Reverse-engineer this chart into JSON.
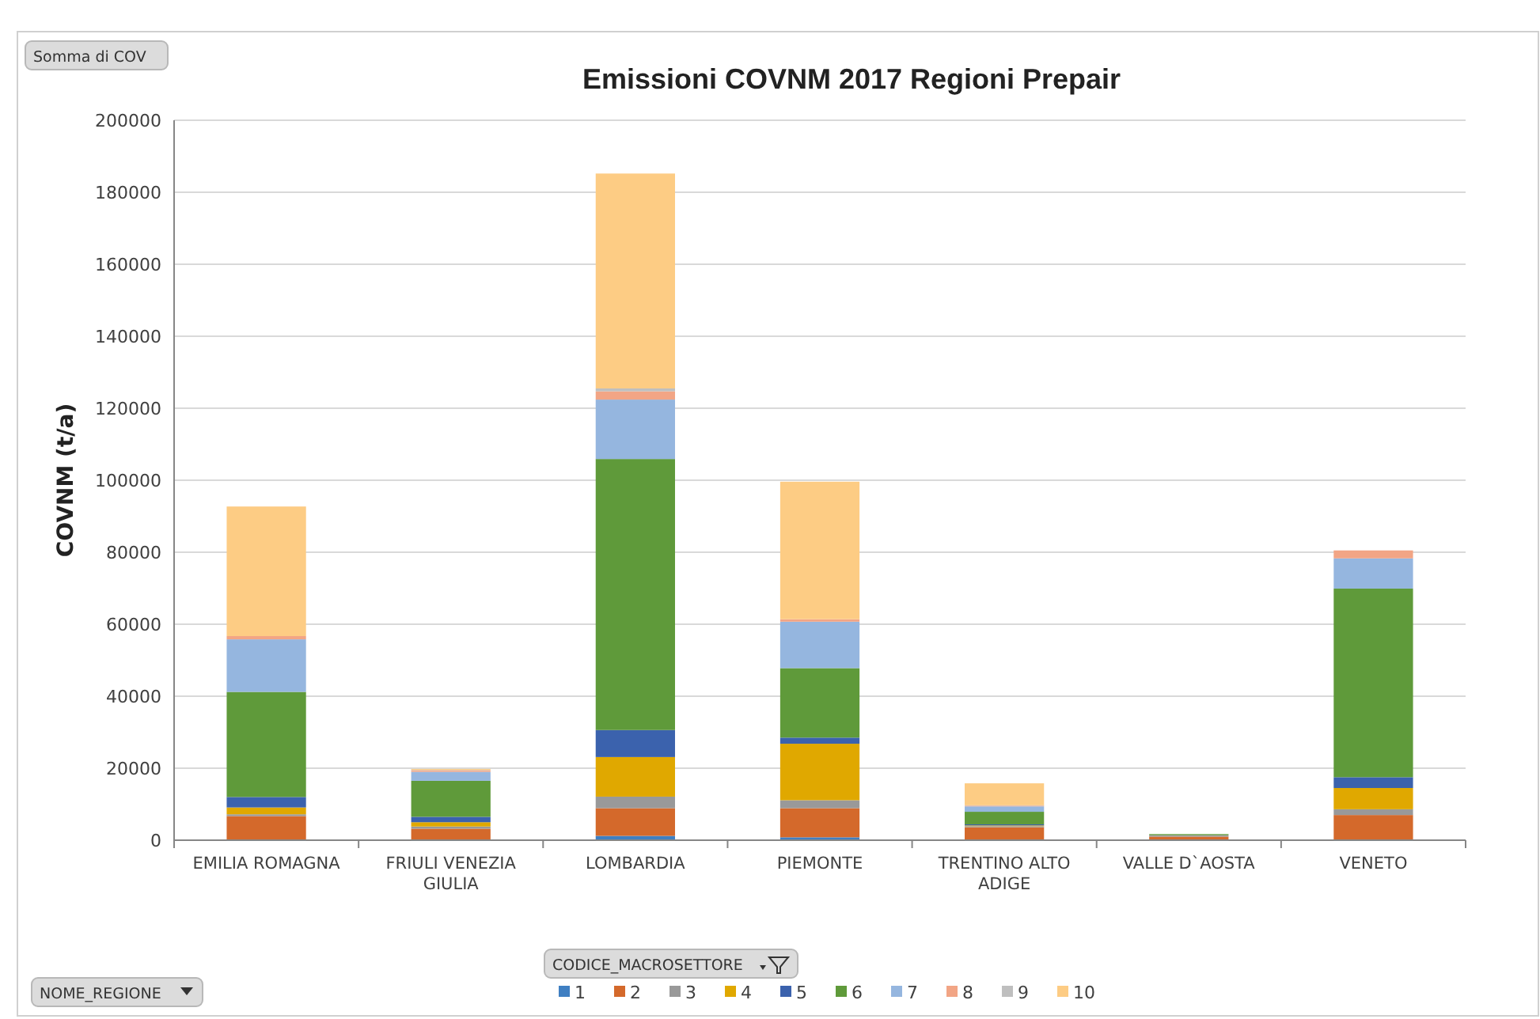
{
  "chart_data": {
    "type": "bar",
    "stacked": true,
    "title": "Emissioni COVNM 2017 Regioni Prepair",
    "ylabel": "COVNM (t/a)",
    "legend_title": "CODICE_MACROSETTORE",
    "legend": "bottom",
    "grid": "y",
    "annotations": [
      "Somma di COV",
      "NOME_REGIONE"
    ],
    "categories": [
      "EMILIA ROMAGNA",
      "FRIULI VENEZIA GIULIA",
      "LOMBARDIA",
      "PIEMONTE",
      "TRENTINO ALTO ADIGE",
      "VALLE D`AOSTA",
      "VENETO"
    ],
    "ylim": [
      0,
      200000
    ],
    "yticks": [
      0,
      20000,
      40000,
      60000,
      80000,
      100000,
      120000,
      140000,
      160000,
      180000,
      200000
    ],
    "series": [
      {
        "name": "1",
        "color": "#3f7fc2",
        "values": [
          null,
          200,
          1200,
          800,
          200,
          0,
          null
        ]
      },
      {
        "name": "2",
        "color": "#d4692b",
        "values": [
          6700,
          3000,
          7700,
          8100,
          3400,
          1000,
          7000
        ]
      },
      {
        "name": "3",
        "color": "#999999",
        "values": [
          500,
          600,
          3200,
          2200,
          300,
          400,
          1600
        ]
      },
      {
        "name": "4",
        "color": "#e0a800",
        "values": [
          1900,
          1200,
          11000,
          15700,
          200,
          0,
          5900
        ]
      },
      {
        "name": "5",
        "color": "#3b62ad",
        "values": [
          2900,
          1500,
          7500,
          1700,
          300,
          0,
          3000
        ]
      },
      {
        "name": "6",
        "color": "#5f9a3a",
        "values": [
          29200,
          10000,
          75300,
          19300,
          3500,
          300,
          52400
        ]
      },
      {
        "name": "7",
        "color": "#95b6df",
        "values": [
          14600,
          2500,
          16500,
          12900,
          1500,
          0,
          8400
        ]
      },
      {
        "name": "8",
        "color": "#f2a585",
        "values": [
          900,
          400,
          2300,
          700,
          200,
          0,
          2200
        ]
      },
      {
        "name": "9",
        "color": "#bfbfbf",
        "values": [
          null,
          100,
          800,
          null,
          100,
          0,
          0
        ]
      },
      {
        "name": "10",
        "color": "#fdcc84",
        "values": [
          36000,
          300,
          59700,
          38200,
          6100,
          0,
          0
        ]
      }
    ]
  }
}
